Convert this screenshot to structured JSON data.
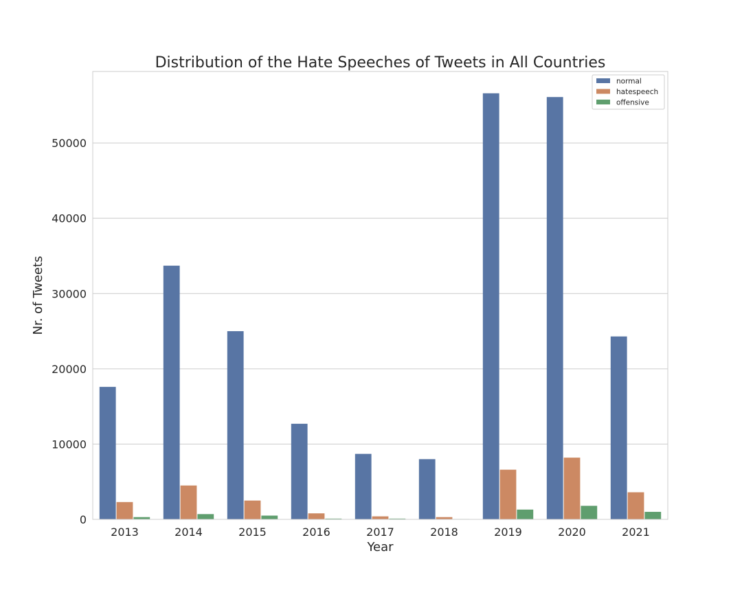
{
  "chart_data": {
    "type": "bar",
    "title": "Distribution of the Hate Speeches of Tweets in All Countries",
    "xlabel": "Year",
    "ylabel": "Nr. of Tweets",
    "categories": [
      "2013",
      "2014",
      "2015",
      "2016",
      "2017",
      "2018",
      "2019",
      "2020",
      "2021"
    ],
    "series": [
      {
        "name": "normal",
        "color": "#5875a4",
        "values": [
          17600,
          33700,
          25000,
          12700,
          8700,
          8000,
          56600,
          56100,
          24300
        ]
      },
      {
        "name": "hatespeech",
        "color": "#cc8963",
        "values": [
          2300,
          4500,
          2500,
          800,
          400,
          300,
          6600,
          8200,
          3600
        ]
      },
      {
        "name": "offensive",
        "color": "#5f9e6e",
        "values": [
          300,
          700,
          500,
          100,
          100,
          50,
          1300,
          1800,
          1000
        ]
      }
    ],
    "yticks": [
      "0",
      "10000",
      "20000",
      "30000",
      "40000",
      "50000"
    ],
    "ylim": [
      0,
      59500
    ],
    "grid": true,
    "legend_position": "top-right"
  }
}
